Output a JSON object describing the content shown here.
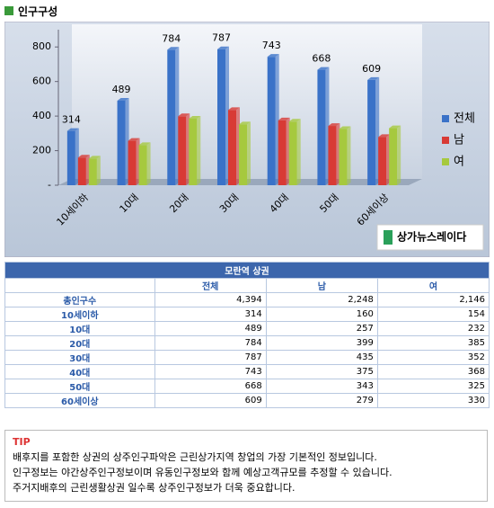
{
  "header": {
    "title": "인구구성"
  },
  "chart_data": {
    "type": "bar",
    "categories": [
      "10세이하",
      "10대",
      "20대",
      "30대",
      "40대",
      "50대",
      "60세이상"
    ],
    "series": [
      {
        "name": "전체",
        "color": "#3a72c8",
        "show_values": true,
        "values": [
          314,
          489,
          784,
          787,
          743,
          668,
          609
        ]
      },
      {
        "name": "남",
        "color": "#d83a35",
        "values": [
          160,
          257,
          399,
          435,
          375,
          343,
          279
        ]
      },
      {
        "name": "여",
        "color": "#a6c93e",
        "values": [
          154,
          232,
          385,
          352,
          368,
          325,
          330
        ]
      }
    ],
    "ylim": [
      0,
      900
    ],
    "yticks": [
      {
        "value": 0,
        "label": "-"
      },
      200,
      400,
      600,
      800
    ],
    "grid": false,
    "legend": "right"
  },
  "logo": "상가뉴스레이다",
  "table": {
    "title": "모란역 상권",
    "columns": [
      "전체",
      "남",
      "여"
    ],
    "rows": [
      [
        "총인구수",
        "4,394",
        "2,248",
        "2,146"
      ],
      [
        "10세이하",
        "314",
        "160",
        "154"
      ],
      [
        "10대",
        "489",
        "257",
        "232"
      ],
      [
        "20대",
        "784",
        "399",
        "385"
      ],
      [
        "30대",
        "787",
        "435",
        "352"
      ],
      [
        "40대",
        "743",
        "375",
        "368"
      ],
      [
        "50대",
        "668",
        "343",
        "325"
      ],
      [
        "60세이상",
        "609",
        "279",
        "330"
      ]
    ]
  },
  "tip": {
    "label": "TIP",
    "lines": [
      "배후지를 포함한 상권의 상주인구파악은 근린상가지역 창업의 가장 기본적인 정보입니다.",
      "인구정보는 야간상주인구정보이며 유동인구정보와 함께 예상고객규모를 추정할 수 있습니다.",
      "주거지배후의 근린생활상권 일수록 상주인구정보가 더욱 중요합니다."
    ]
  }
}
